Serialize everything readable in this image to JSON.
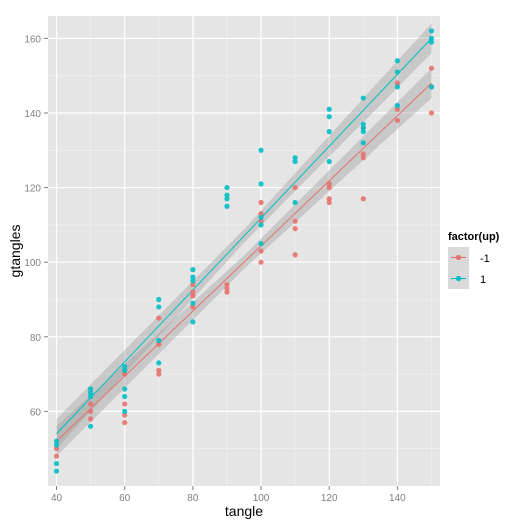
{
  "chart_data": {
    "type": "scatter",
    "title": "",
    "xlabel": "tangle",
    "ylabel": "gtangles",
    "xlim": [
      37.5,
      152.5
    ],
    "ylim": [
      40,
      166
    ],
    "xticks": [
      40,
      60,
      80,
      100,
      120,
      140
    ],
    "yticks": [
      60,
      80,
      100,
      120,
      140,
      160
    ],
    "grid": true,
    "legend": {
      "title": "factor(up)",
      "position": "right"
    },
    "series": [
      {
        "name": "-1",
        "color": "#E5716F",
        "points": [
          [
            40,
            48
          ],
          [
            40,
            50
          ],
          [
            50,
            58
          ],
          [
            50,
            60
          ],
          [
            50,
            62
          ],
          [
            60,
            57
          ],
          [
            60,
            59
          ],
          [
            60,
            62
          ],
          [
            60,
            70
          ],
          [
            60,
            71
          ],
          [
            70,
            70
          ],
          [
            70,
            71
          ],
          [
            70,
            78
          ],
          [
            70,
            85
          ],
          [
            80,
            88
          ],
          [
            80,
            91
          ],
          [
            80,
            92
          ],
          [
            80,
            94
          ],
          [
            90,
            92
          ],
          [
            90,
            93
          ],
          [
            90,
            94
          ],
          [
            100,
            100
          ],
          [
            100,
            103
          ],
          [
            100,
            116
          ],
          [
            100,
            111
          ],
          [
            100,
            113
          ],
          [
            110,
            102
          ],
          [
            110,
            109
          ],
          [
            110,
            111
          ],
          [
            110,
            120
          ],
          [
            120,
            116
          ],
          [
            120,
            117
          ],
          [
            120,
            120
          ],
          [
            120,
            121
          ],
          [
            130,
            117
          ],
          [
            130,
            128
          ],
          [
            130,
            129
          ],
          [
            130,
            136
          ],
          [
            140,
            138
          ],
          [
            140,
            141
          ],
          [
            140,
            148
          ],
          [
            150,
            140
          ],
          [
            150,
            147
          ],
          [
            150,
            152
          ]
        ],
        "fit": {
          "x": [
            40,
            150
          ],
          "y": [
            52,
            148
          ],
          "ci": [
            [
              48,
              56
            ],
            [
              144,
              152
            ]
          ]
        }
      },
      {
        "name": "1",
        "color": "#00BFC4",
        "points": [
          [
            40,
            44
          ],
          [
            40,
            46
          ],
          [
            40,
            51
          ],
          [
            40,
            52
          ],
          [
            50,
            56
          ],
          [
            50,
            64
          ],
          [
            50,
            65
          ],
          [
            50,
            66
          ],
          [
            60,
            60
          ],
          [
            60,
            64
          ],
          [
            60,
            66
          ],
          [
            60,
            71
          ],
          [
            60,
            72
          ],
          [
            70,
            73
          ],
          [
            70,
            79
          ],
          [
            70,
            88
          ],
          [
            70,
            90
          ],
          [
            80,
            84
          ],
          [
            80,
            89
          ],
          [
            80,
            95
          ],
          [
            80,
            96
          ],
          [
            80,
            98
          ],
          [
            90,
            115
          ],
          [
            90,
            117
          ],
          [
            90,
            118
          ],
          [
            90,
            120
          ],
          [
            100,
            105
          ],
          [
            100,
            110
          ],
          [
            100,
            112
          ],
          [
            100,
            121
          ],
          [
            100,
            130
          ],
          [
            110,
            116
          ],
          [
            110,
            127
          ],
          [
            110,
            128
          ],
          [
            120,
            127
          ],
          [
            120,
            135
          ],
          [
            120,
            139
          ],
          [
            120,
            141
          ],
          [
            130,
            132
          ],
          [
            130,
            135
          ],
          [
            130,
            136
          ],
          [
            130,
            137
          ],
          [
            130,
            144
          ],
          [
            140,
            142
          ],
          [
            140,
            147
          ],
          [
            140,
            151
          ],
          [
            140,
            154
          ],
          [
            150,
            147
          ],
          [
            150,
            159
          ],
          [
            150,
            160
          ],
          [
            150,
            162
          ]
        ],
        "fit": {
          "x": [
            40,
            150
          ],
          "y": [
            54,
            160
          ],
          "ci": [
            [
              50,
              58
            ],
            [
              156,
              164
            ]
          ]
        }
      }
    ]
  }
}
